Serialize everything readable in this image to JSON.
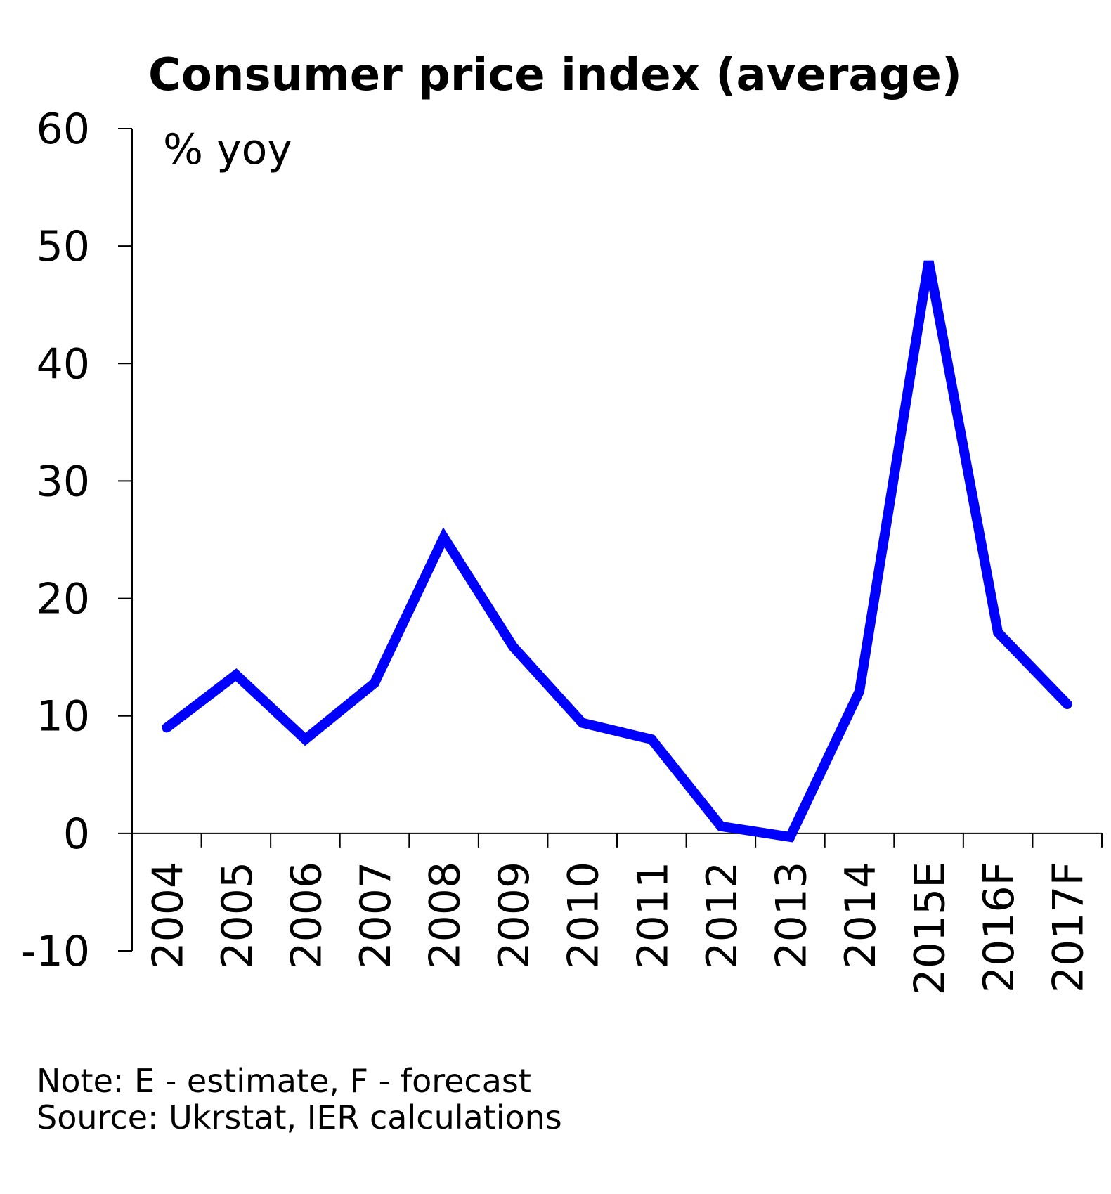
{
  "chart_data": {
    "type": "line",
    "title": "Consumer price index (average)",
    "unit_label": "% yoy",
    "xlabel": "",
    "ylabel": "",
    "ylim": [
      -10,
      60
    ],
    "yticks": [
      "-10",
      "0",
      "10",
      "20",
      "30",
      "40",
      "50",
      "60"
    ],
    "categories": [
      "2004",
      "2005",
      "2006",
      "2007",
      "2008",
      "2009",
      "2010",
      "2011",
      "2012",
      "2013",
      "2014",
      "2015E",
      "2016F",
      "2017F"
    ],
    "series": [
      {
        "values": [
          9.0,
          13.5,
          8.0,
          12.8,
          25.2,
          15.9,
          9.4,
          8.0,
          0.6,
          -0.3,
          12.1,
          48.7,
          17.1,
          11.0
        ],
        "color": "#0000ff"
      }
    ],
    "grid": false,
    "legend": "none"
  },
  "notes": {
    "note": "Note: E - estimate, F - forecast",
    "source": "Source: Ukrstat, IER calculations"
  }
}
